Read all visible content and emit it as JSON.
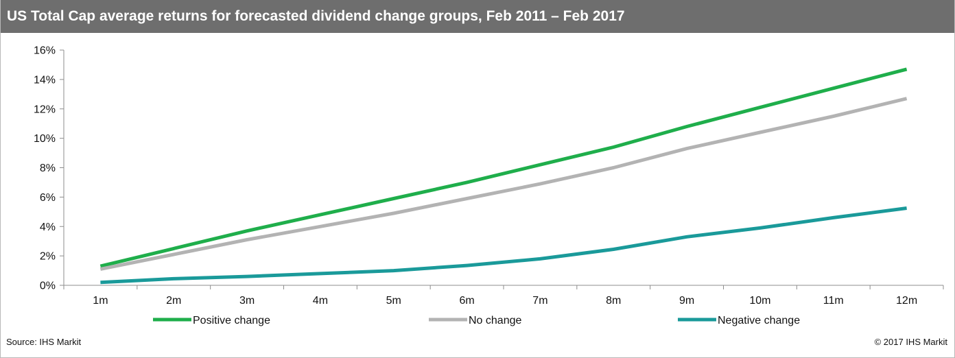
{
  "header": {
    "title": "US Total Cap average returns for forecasted dividend change groups, Feb 2011 – Feb 2017"
  },
  "footer": {
    "source": "Source: IHS Markit",
    "copyright": "© 2017 IHS Markit"
  },
  "colors": {
    "title_bar": "#6e6e6e",
    "positive": "#1fae4b",
    "none": "#b3b3b3",
    "negative": "#1a9a9a",
    "axis": "#8c8c8c"
  },
  "chart_data": {
    "type": "line",
    "title": "US Total Cap average returns for forecasted dividend change groups, Feb 2011 – Feb 2017",
    "xlabel": "",
    "ylabel": "",
    "categories": [
      "1m",
      "2m",
      "3m",
      "4m",
      "5m",
      "6m",
      "7m",
      "8m",
      "9m",
      "10m",
      "11m",
      "12m"
    ],
    "ylim": [
      0,
      16
    ],
    "yticks": [
      0,
      2,
      4,
      6,
      8,
      10,
      12,
      14,
      16
    ],
    "ytick_labels": [
      "0%",
      "2%",
      "4%",
      "6%",
      "8%",
      "10%",
      "12%",
      "14%",
      "16%"
    ],
    "grid": false,
    "legend_position": "bottom",
    "series": [
      {
        "name": "Positive change",
        "color": "#1fae4b",
        "values": [
          1.3,
          2.5,
          3.7,
          4.8,
          5.9,
          7.0,
          8.2,
          9.4,
          10.8,
          12.1,
          13.4,
          14.7
        ]
      },
      {
        "name": "No change",
        "color": "#b3b3b3",
        "values": [
          1.1,
          2.1,
          3.1,
          4.0,
          4.9,
          5.9,
          6.9,
          8.0,
          9.3,
          10.4,
          11.5,
          12.7
        ]
      },
      {
        "name": "Negative change",
        "color": "#1a9a9a",
        "values": [
          0.2,
          0.45,
          0.6,
          0.8,
          1.0,
          1.35,
          1.8,
          2.45,
          3.3,
          3.9,
          4.6,
          5.25
        ]
      }
    ]
  }
}
